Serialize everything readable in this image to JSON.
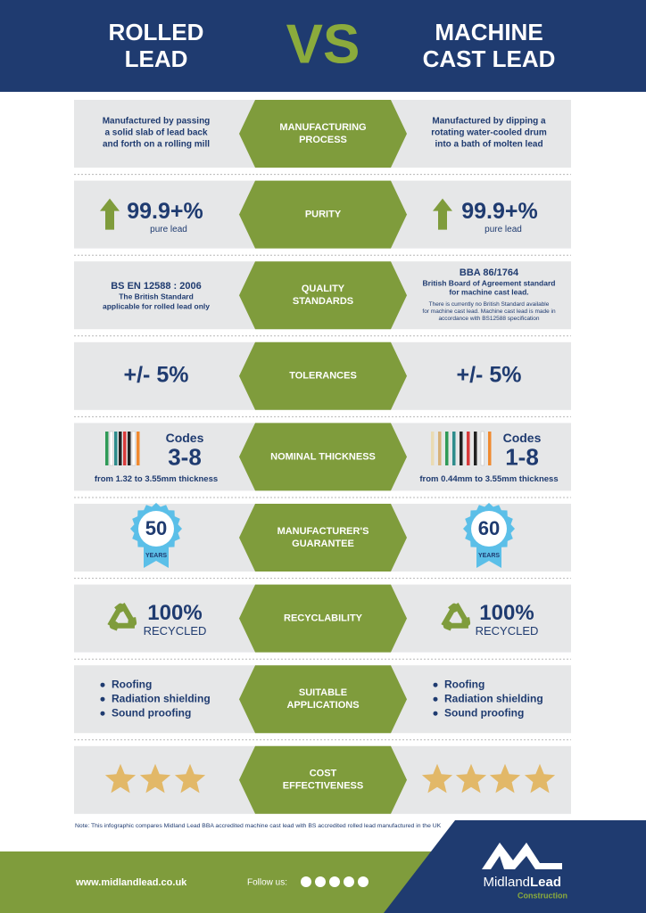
{
  "header": {
    "left_title": [
      "ROLLED",
      "LEAD"
    ],
    "vs": "VS",
    "right_title": [
      "MACHINE",
      "CAST LEAD"
    ]
  },
  "rows": [
    {
      "label": [
        "MANUFACTURING",
        "PROCESS"
      ],
      "left": [
        "Manufactured by passing",
        "a solid slab of lead back",
        "and forth on a rolling mill"
      ],
      "right": [
        "Manufactured by dipping a",
        "rotating water-cooled drum",
        "into a bath of molten lead"
      ]
    },
    {
      "label": [
        "PURITY"
      ],
      "left": {
        "value": "99.9+%",
        "caption": "pure lead"
      },
      "right": {
        "value": "99.9+%",
        "caption": "pure lead"
      }
    },
    {
      "label": [
        "QUALITY",
        "STANDARDS"
      ],
      "left": {
        "standard": "BS EN 12588 : 2006",
        "description": [
          "The British Standard",
          "applicable for rolled lead only"
        ]
      },
      "right": {
        "standard": "BBA 86/1764",
        "description": [
          "British Board of Agreement standard",
          "for machine cast lead."
        ],
        "note": [
          "There is currently no British Standard available",
          "for machine cast lead. Machine cast lead is made in",
          "accordance with BS12588 specification"
        ]
      }
    },
    {
      "label": [
        "TOLERANCES"
      ],
      "left": "+/- 5%",
      "right": "+/- 5%"
    },
    {
      "label": [
        "NOMINAL THICKNESS"
      ],
      "left": {
        "heading": "Codes",
        "codes": "3-8",
        "range": "from 1.32 to 3.55mm thickness"
      },
      "right": {
        "heading": "Codes",
        "codes": "1-8",
        "range": "from 0.44mm to 3.55mm thickness"
      }
    },
    {
      "label": [
        "MANUFACTURER'S",
        "GUARANTEE"
      ],
      "left": {
        "years": 50,
        "unit": "YEARS"
      },
      "right": {
        "years": 60,
        "unit": "YEARS"
      }
    },
    {
      "label": [
        "RECYCLABILITY"
      ],
      "left": {
        "value": "100%",
        "caption": "RECYCLED"
      },
      "right": {
        "value": "100%",
        "caption": "RECYCLED"
      }
    },
    {
      "label": [
        "SUITABLE",
        "APPLICATIONS"
      ],
      "left": [
        "Roofing",
        "Radiation shielding",
        "Sound proofing"
      ],
      "right": [
        "Roofing",
        "Radiation shielding",
        "Sound proofing"
      ]
    },
    {
      "label": [
        "COST",
        "EFFECTIVENESS"
      ]
    }
  ],
  "note": "Note: This infographic compares Midland Lead BBA accredited machine cast lead with BS accredited rolled lead manufactured in the UK",
  "footer": {
    "website": "www.midlandlead.co.uk",
    "follow": "Follow us:",
    "brand": [
      "Midland",
      "Lead"
    ],
    "division": "Construction"
  }
}
